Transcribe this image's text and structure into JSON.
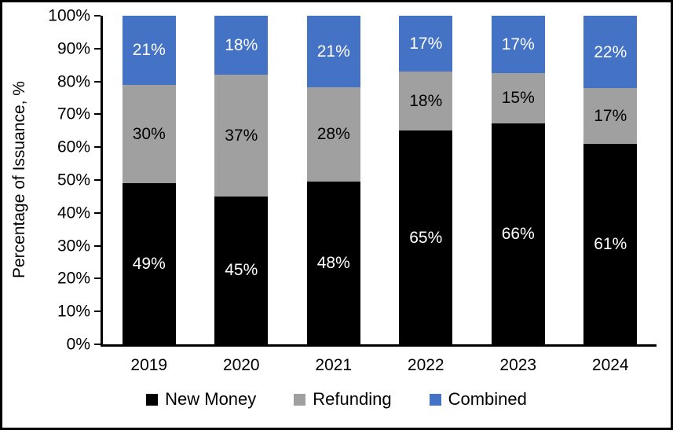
{
  "chart_data": {
    "type": "bar",
    "stacked": true,
    "title": "",
    "xlabel": "",
    "ylabel": "Percentage of Issuance, %",
    "ylim": [
      0,
      100
    ],
    "grid": false,
    "legend_position": "bottom",
    "y_ticks": [
      {
        "value": 0,
        "label": "0%"
      },
      {
        "value": 10,
        "label": "10%"
      },
      {
        "value": 20,
        "label": "20%"
      },
      {
        "value": 30,
        "label": "30%"
      },
      {
        "value": 40,
        "label": "40%"
      },
      {
        "value": 50,
        "label": "50%"
      },
      {
        "value": 60,
        "label": "60%"
      },
      {
        "value": 70,
        "label": "70%"
      },
      {
        "value": 80,
        "label": "80%"
      },
      {
        "value": 90,
        "label": "90%"
      },
      {
        "value": 100,
        "label": "100%"
      }
    ],
    "categories": [
      "2019",
      "2020",
      "2021",
      "2022",
      "2023",
      "2024"
    ],
    "series": [
      {
        "name": "New Money",
        "color": "#000000",
        "label_color": "#ffffff",
        "values": [
          49,
          45,
          48,
          65,
          66,
          61
        ],
        "labels": [
          "49%",
          "45%",
          "48%",
          "65%",
          "66%",
          "61%"
        ]
      },
      {
        "name": "Refunding",
        "color": "#a0a0a0",
        "label_color": "#000000",
        "values": [
          30,
          37,
          28,
          18,
          15,
          17
        ],
        "labels": [
          "30%",
          "37%",
          "28%",
          "18%",
          "15%",
          "17%"
        ]
      },
      {
        "name": "Combined",
        "color": "#4472c4",
        "label_color": "#ffffff",
        "values": [
          21,
          18,
          21,
          17,
          17,
          22
        ],
        "labels": [
          "21%",
          "18%",
          "21%",
          "17%",
          "17%",
          "22%"
        ]
      }
    ]
  }
}
